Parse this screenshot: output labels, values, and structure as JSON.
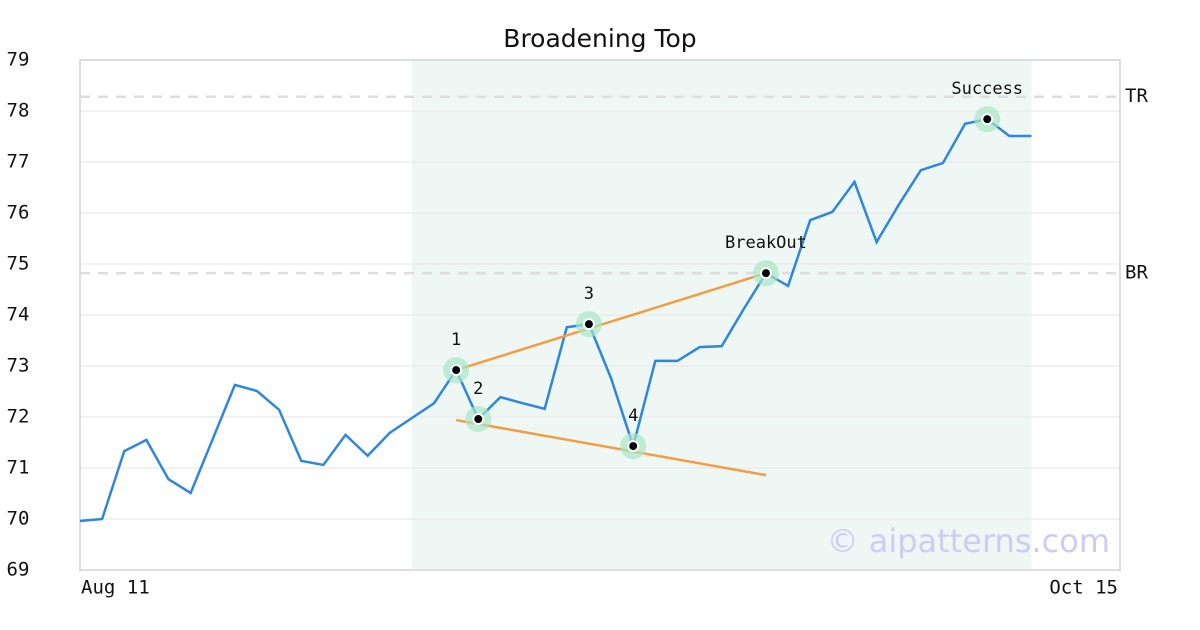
{
  "chart_data": {
    "type": "line",
    "title": "Broadening Top",
    "color": "#2e86de",
    "x": [
      0,
      1,
      2,
      3,
      4,
      5,
      6,
      7,
      8,
      9,
      10,
      11,
      12,
      13,
      14,
      15,
      16,
      17,
      18,
      19,
      20,
      21,
      22,
      23,
      24,
      25,
      26,
      27,
      28,
      29,
      30,
      31,
      32,
      33,
      34,
      35,
      36,
      37,
      38,
      39,
      40,
      41,
      42,
      43
    ],
    "values": [
      69.96,
      70.0,
      71.33,
      71.55,
      70.78,
      70.51,
      71.57,
      72.63,
      72.51,
      72.14,
      71.14,
      71.06,
      71.65,
      71.24,
      71.69,
      71.98,
      72.27,
      72.92,
      71.96,
      72.39,
      72.27,
      72.16,
      73.76,
      73.82,
      72.76,
      71.43,
      73.1,
      73.1,
      73.37,
      73.39,
      74.12,
      74.82,
      74.57,
      75.86,
      76.02,
      76.61,
      75.43,
      76.16,
      76.84,
      76.98,
      77.75,
      77.84,
      77.51,
      77.51
    ],
    "xlim": [
      0,
      47
    ],
    "xticks": [
      {
        "value": 0,
        "label": "Aug 11"
      },
      {
        "value": 47,
        "label": "Oct 15"
      }
    ],
    "ylim": [
      69,
      79
    ],
    "yticks": [
      69,
      70,
      71,
      72,
      73,
      74,
      75,
      76,
      77,
      78,
      79
    ],
    "grid": true,
    "highlight": [
      15,
      43
    ],
    "highlight_color": "#eef7f3",
    "levels": [
      {
        "value": 78.28,
        "label": "TR"
      },
      {
        "value": 74.82,
        "label": "BR"
      }
    ],
    "trendlines": [
      {
        "x": [
          17,
          31
        ],
        "y": [
          72.92,
          74.82
        ],
        "color": "#f39c45"
      },
      {
        "x": [
          17,
          31
        ],
        "y": [
          71.94,
          70.86
        ],
        "color": "#f39c45"
      }
    ],
    "points": [
      {
        "x": 17,
        "y": 72.92,
        "label": "1"
      },
      {
        "x": 18,
        "y": 71.96,
        "label": "2"
      },
      {
        "x": 23,
        "y": 73.82,
        "label": "3"
      },
      {
        "x": 25,
        "y": 71.43,
        "label": "4"
      },
      {
        "x": 31,
        "y": 74.82,
        "label": "BreakOut"
      },
      {
        "x": 41,
        "y": 77.84,
        "label": "Success"
      }
    ],
    "watermark": "© aipatterns.com"
  }
}
